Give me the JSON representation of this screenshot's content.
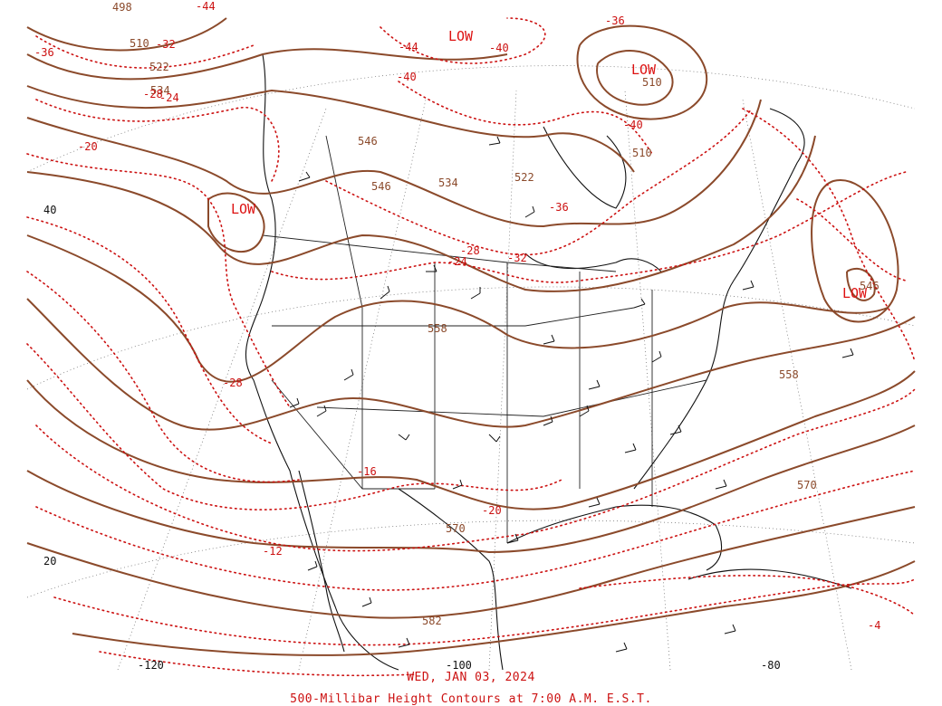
{
  "map": {
    "date_label": "WED, JAN 03, 2024",
    "title": "500-Millibar Height Contours at 7:00 A.M. E.S.T.",
    "lows": [
      "LOW",
      "LOW",
      "LOW",
      "LOW"
    ],
    "height_labels": [
      "498",
      "510",
      "522",
      "534",
      "546",
      "558",
      "570",
      "582",
      "510",
      "522",
      "534",
      "546",
      "558",
      "570",
      "546",
      "510"
    ],
    "temperature_labels": [
      "-44",
      "-40",
      "-36",
      "-32",
      "-28",
      "-24",
      "-20",
      "-40",
      "-44",
      "-40",
      "-36",
      "-28",
      "-24",
      "-32",
      "-28",
      "-16",
      "-20",
      "-12",
      "-36",
      "-4"
    ],
    "latitude_labels": [
      "40",
      "20"
    ],
    "longitude_labels": [
      "-120",
      "-100",
      "-80"
    ],
    "colors": {
      "height_contours": "#8b4a2b",
      "temperature_contours": "#cc1111",
      "low_labels": "#dd1111"
    }
  }
}
